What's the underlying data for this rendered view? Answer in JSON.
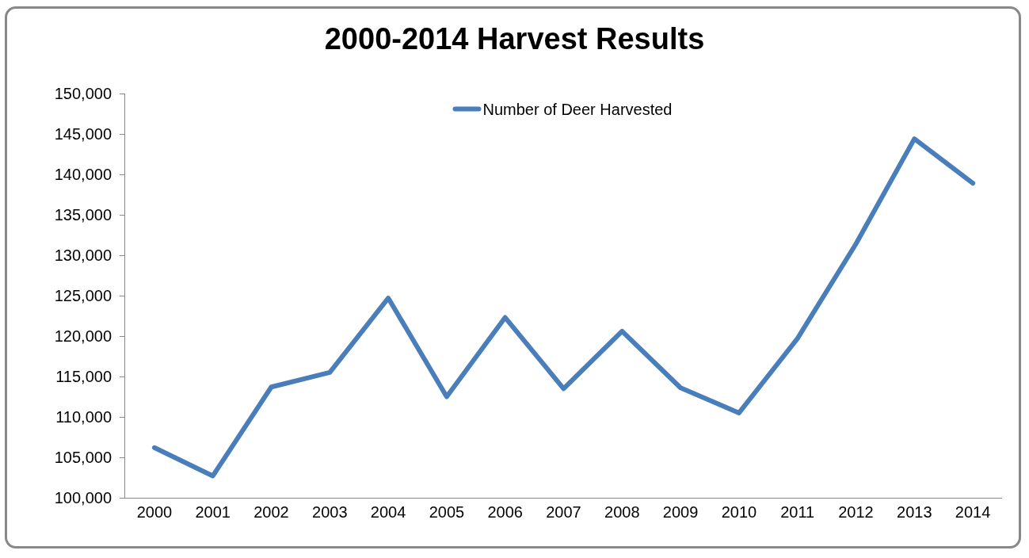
{
  "chart_data": {
    "type": "line",
    "title": "2000-2014 Harvest Results",
    "categories": [
      "2000",
      "2001",
      "2002",
      "2003",
      "2004",
      "2005",
      "2006",
      "2007",
      "2008",
      "2009",
      "2010",
      "2011",
      "2012",
      "2013",
      "2014"
    ],
    "series": [
      {
        "name": "Number of Deer Harvested",
        "color": "#4a7ebb",
        "values": [
          106200,
          102700,
          113700,
          115500,
          124700,
          112500,
          122300,
          113500,
          120600,
          113600,
          110500,
          119700,
          131400,
          144400,
          138900
        ]
      }
    ],
    "ylim": [
      100000,
      150000
    ],
    "yticks": [
      {
        "value": 100000,
        "label": "100,000"
      },
      {
        "value": 105000,
        "label": "105,000"
      },
      {
        "value": 110000,
        "label": "110,000"
      },
      {
        "value": 115000,
        "label": "115,000"
      },
      {
        "value": 120000,
        "label": "120,000"
      },
      {
        "value": 125000,
        "label": "125,000"
      },
      {
        "value": 130000,
        "label": "130,000"
      },
      {
        "value": 135000,
        "label": "135,000"
      },
      {
        "value": 140000,
        "label": "140,000"
      },
      {
        "value": 145000,
        "label": "145,000"
      },
      {
        "value": 150000,
        "label": "150,000"
      }
    ],
    "grid": false,
    "legend": "top",
    "marker": "none",
    "line_style": "solid"
  }
}
